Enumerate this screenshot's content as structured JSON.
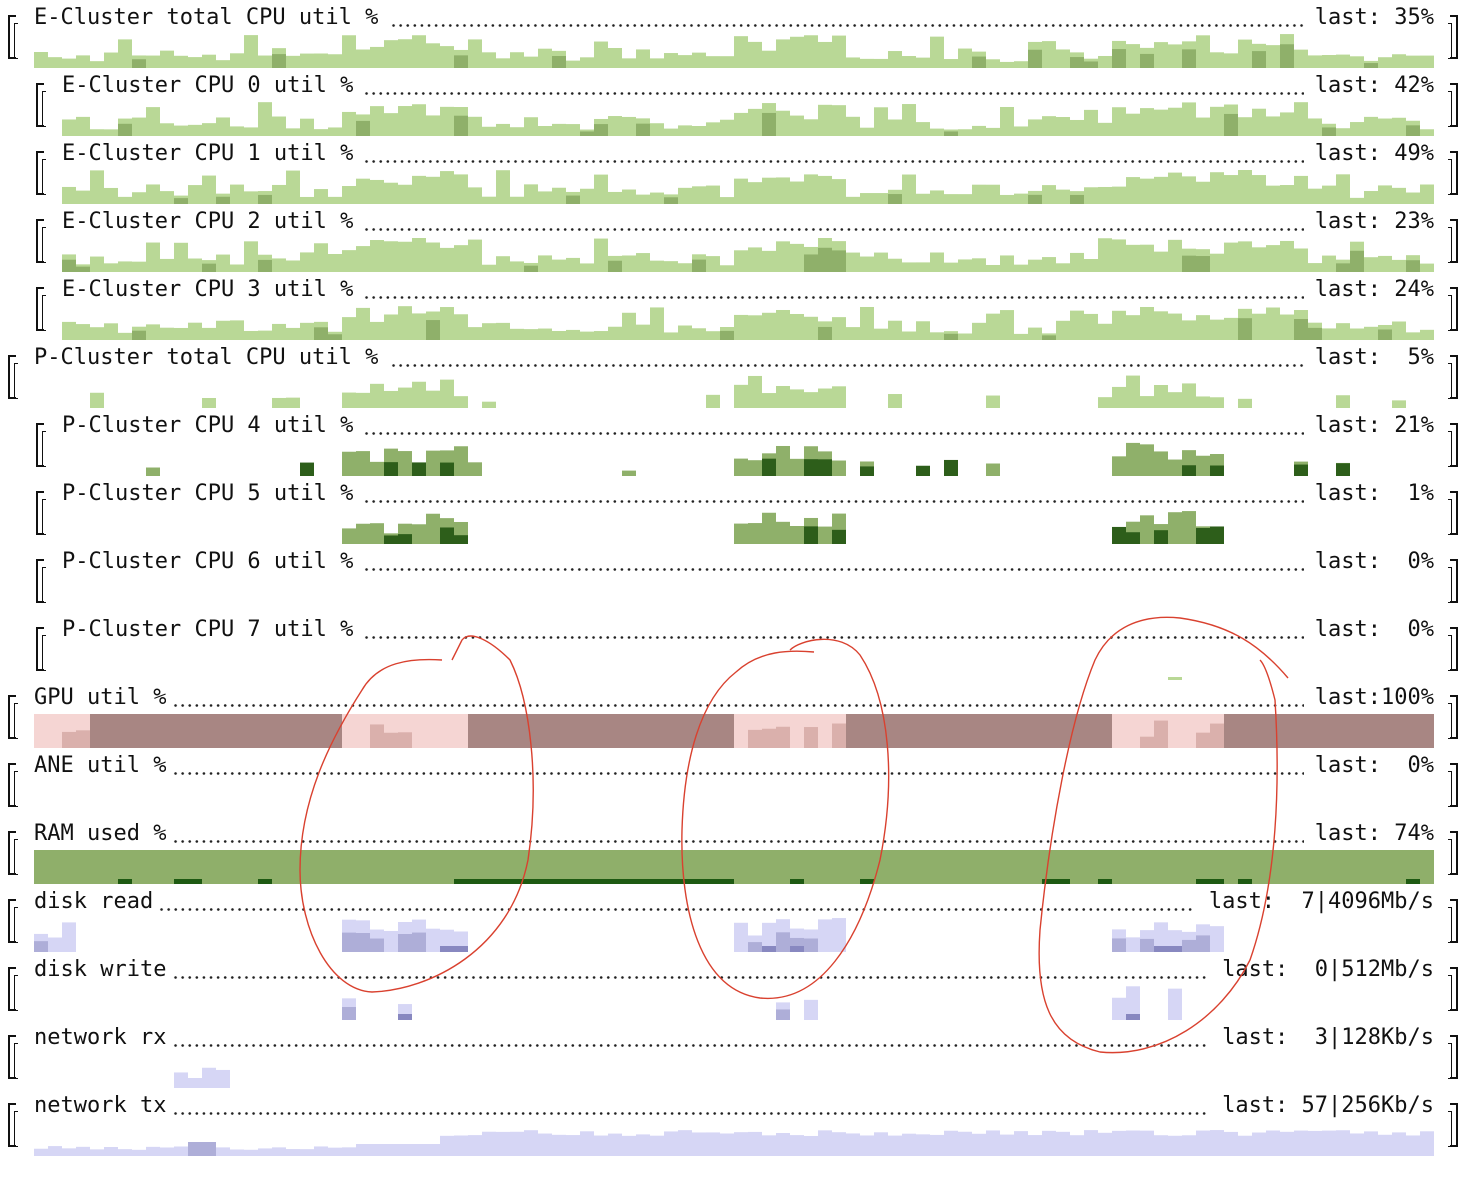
{
  "colors": {
    "cpu_light": "#b9d896",
    "cpu_mid": "#8fb06a",
    "cpu_dark": "#2d5e1a",
    "gpu_light": "#f5d5d3",
    "gpu_mid": "#dab0ac",
    "gpu_dark": "#a88683",
    "ram_fill": "#8faf6a",
    "ram_dark": "#1e5a12",
    "io_light": "#d6d6f5",
    "io_mid": "#aeaed8",
    "io_dark": "#8888c0",
    "annotation": "#d9412f"
  },
  "rows": [
    {
      "label": "E-Cluster total CPU util %",
      "last": "last: 35%",
      "indent": 0,
      "kind": "cpu"
    },
    {
      "label": "E-Cluster CPU 0 util %",
      "last": "last: 42%",
      "indent": 1,
      "kind": "cpu"
    },
    {
      "label": "E-Cluster CPU 1 util %",
      "last": "last: 49%",
      "indent": 1,
      "kind": "cpu"
    },
    {
      "label": "E-Cluster CPU 2 util %",
      "last": "last: 23%",
      "indent": 1,
      "kind": "cpu"
    },
    {
      "label": "E-Cluster CPU 3 util %",
      "last": "last: 24%",
      "indent": 1,
      "kind": "cpu"
    },
    {
      "label": "P-Cluster total CPU util %",
      "last": "last:  5%",
      "indent": 0,
      "kind": "cpu"
    },
    {
      "label": "P-Cluster CPU 4 util %",
      "last": "last: 21%",
      "indent": 1,
      "kind": "cpu"
    },
    {
      "label": "P-Cluster CPU 5 util %",
      "last": "last:  1%",
      "indent": 1,
      "kind": "cpu"
    },
    {
      "label": "P-Cluster CPU 6 util %",
      "last": "last:  0%",
      "indent": 1,
      "kind": "cpu"
    },
    {
      "label": "P-Cluster CPU 7 util %",
      "last": "last:  0%",
      "indent": 1,
      "kind": "cpu"
    },
    {
      "label": "GPU util %",
      "last": "last:100%",
      "indent": 0,
      "kind": "gpu"
    },
    {
      "label": "ANE util %",
      "last": "last:  0%",
      "indent": 0,
      "kind": "cpu"
    },
    {
      "label": "RAM used %",
      "last": "last: 74%",
      "indent": 0,
      "kind": "ram"
    },
    {
      "label": "disk read",
      "last": "last:  7|4096Mb/s",
      "indent": 0,
      "kind": "io"
    },
    {
      "label": "disk write",
      "last": "last:  0|512Mb/s",
      "indent": 0,
      "kind": "io"
    },
    {
      "label": "network rx",
      "last": "last:  3|128Kb/s",
      "indent": 0,
      "kind": "io"
    },
    {
      "label": "network tx",
      "last": "last: 57|256Kb/s",
      "indent": 0,
      "kind": "io"
    }
  ]
}
